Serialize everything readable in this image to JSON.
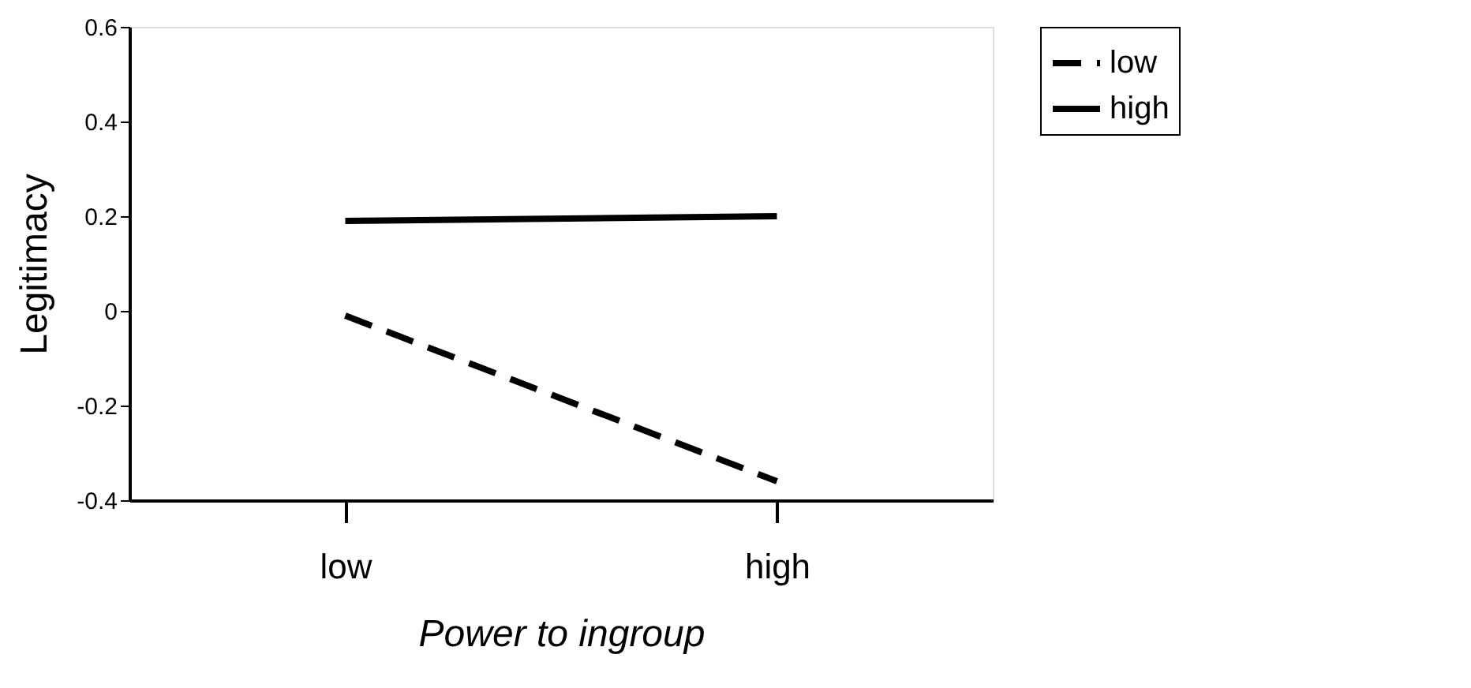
{
  "chart_data": {
    "type": "line",
    "xlabel": "Power to ingroup",
    "ylabel": "Legitimacy",
    "categories": [
      "low",
      "high"
    ],
    "series": [
      {
        "name": "low",
        "color": "#000000",
        "line_style": "dashed",
        "values": [
          -0.01,
          -0.36
        ]
      },
      {
        "name": "high",
        "color": "#000000",
        "line_style": "solid",
        "values": [
          0.19,
          0.2
        ]
      }
    ],
    "ylim": [
      -0.4,
      0.6
    ],
    "yticks": [
      -0.4,
      -0.2,
      0,
      0.2,
      0.4,
      0.6
    ],
    "grid": false,
    "legend": "right",
    "marker": "none"
  }
}
